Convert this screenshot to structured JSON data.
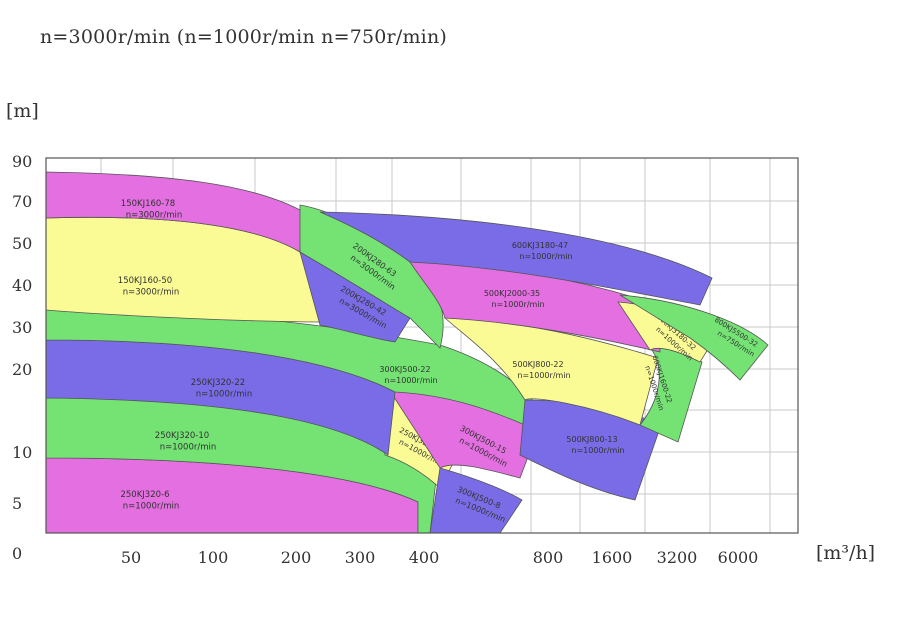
{
  "header": {
    "speed_line": "n=3000r/min  (n=1000r/min  n=750r/min)"
  },
  "chart_data": {
    "type": "area",
    "title": "n=3000r/min  (n=1000r/min  n=750r/min)",
    "y_axis": {
      "unit": "[m]",
      "ticks": [
        "0",
        "5",
        "10",
        "20",
        "30",
        "40",
        "50",
        "70",
        "90"
      ],
      "grid": true
    },
    "x_axis": {
      "unit": "[m³/h]",
      "ticks": [
        "50",
        "100",
        "200",
        "300",
        "400",
        "800",
        "1600",
        "3200",
        "6000"
      ],
      "grid": true
    },
    "colors": {
      "magenta": "#e36fe0",
      "yellow": "#fbfb95",
      "green": "#74e374",
      "blue": "#7a6ce6",
      "grid": "#c8c8c8"
    },
    "regions": [
      {
        "id": "250KJ320-6",
        "model": "250KJ320-6",
        "speed": "n=1000r/min",
        "color": "magenta"
      },
      {
        "id": "250KJ320-10",
        "model": "250KJ320-10",
        "speed": "n=1000r/min",
        "color": "green"
      },
      {
        "id": "250KJ320-17",
        "model": "250KJ320-17",
        "speed": "n=1000r/min",
        "color": "yellow"
      },
      {
        "id": "300KJ500-8",
        "model": "300KJ500-8",
        "speed": "n=1000r/min",
        "color": "blue"
      },
      {
        "id": "300KJ500-15",
        "model": "300KJ500-15",
        "speed": "n=1000r/min",
        "color": "magenta"
      },
      {
        "id": "250KJ320-22",
        "model": "250KJ320-22",
        "speed": "n=1000r/min",
        "color": "blue"
      },
      {
        "id": "300KJ500-22",
        "model": "300KJ500-22",
        "speed": "n=1000r/min",
        "color": "green"
      },
      {
        "id": "500KJ800-13",
        "model": "500KJ800-13",
        "speed": "n=1000r/min",
        "color": "blue"
      },
      {
        "id": "500KJ800-22",
        "model": "500KJ800-22",
        "speed": "n=1000r/min",
        "color": "yellow"
      },
      {
        "id": "600KJ1600-22",
        "model": "600KJ1600-22",
        "speed": "n=1000r/min",
        "color": "green"
      },
      {
        "id": "150KJ160-50",
        "model": "150KJ160-50",
        "speed": "n=3000r/min",
        "color": "yellow"
      },
      {
        "id": "200KJ280-42",
        "model": "200KJ280-42",
        "speed": "n=3000r/min",
        "color": "blue"
      },
      {
        "id": "150KJ160-78",
        "model": "150KJ160-78",
        "speed": "n=3000r/min",
        "color": "magenta"
      },
      {
        "id": "200KJ280-63",
        "model": "200KJ280-63",
        "speed": "n=3000r/min",
        "color": "green"
      },
      {
        "id": "500KJ2000-35",
        "model": "500KJ2000-35",
        "speed": "n=1000r/min",
        "color": "magenta"
      },
      {
        "id": "600KJ3180-47",
        "model": "600KJ3180-47",
        "speed": "n=1000r/min",
        "color": "blue"
      },
      {
        "id": "600KJ3180-32",
        "model": "600KJ3180-32",
        "speed": "n=1000r/min",
        "color": "yellow"
      },
      {
        "id": "800KJ5500-32",
        "model": "800KJ5500-32",
        "speed": "n=750r/min",
        "color": "green"
      }
    ]
  }
}
